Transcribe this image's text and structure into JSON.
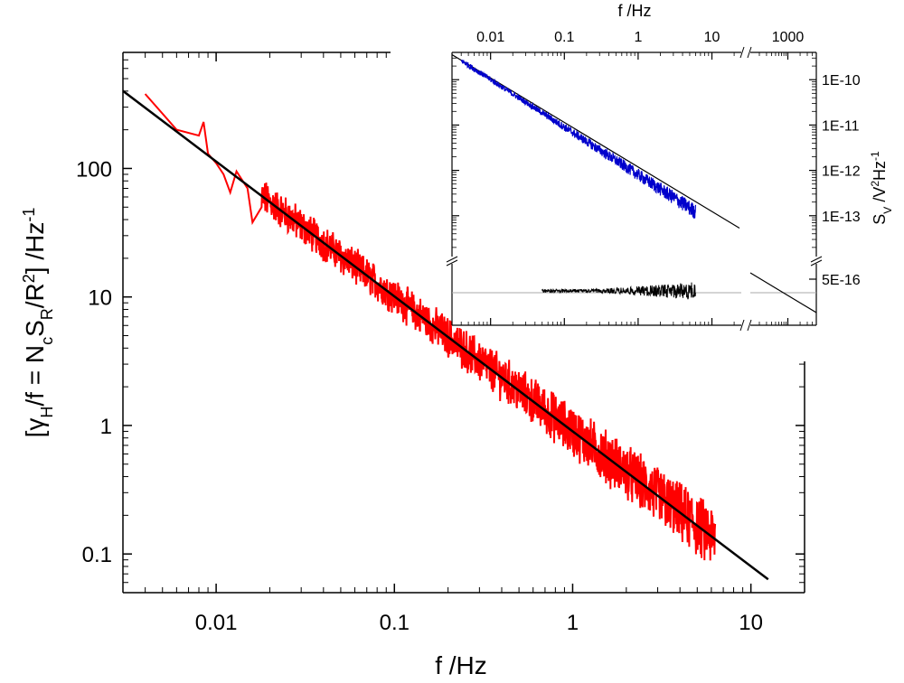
{
  "chart_data": [
    {
      "type": "line",
      "role": "main",
      "scale": "log-log",
      "xlabel": "f /Hz",
      "ylabel": {
        "prefix": "[γ",
        "sub1": "H",
        "mid1": "/f = N",
        "sub2": "c",
        "mid2": "S",
        "sub3": "R",
        "mid3": "/R",
        "sup1": "2",
        "mid4": "] /Hz",
        "sup2": "-1"
      },
      "xlim": [
        0.003,
        20
      ],
      "ylim": [
        0.05,
        800
      ],
      "x_ticks": [
        {
          "value": 0.01,
          "label": "0.01"
        },
        {
          "value": 0.1,
          "label": "0.1"
        },
        {
          "value": 1,
          "label": "1"
        },
        {
          "value": 10,
          "label": "10"
        }
      ],
      "y_ticks": [
        {
          "value": 0.1,
          "label": "0.1"
        },
        {
          "value": 1,
          "label": "1"
        },
        {
          "value": 10,
          "label": "10"
        },
        {
          "value": 100,
          "label": "100"
        }
      ],
      "series": [
        {
          "name": "measured γH/f",
          "color": "#ff0000",
          "style": "noisy",
          "x_range": [
            0.004,
            6.3
          ],
          "trend": {
            "slope": -1.05,
            "ref_x": 1,
            "ref_y": 0.9
          },
          "points": [
            [
              0.004,
              380
            ],
            [
              0.006,
              200
            ],
            [
              0.008,
              180
            ],
            [
              0.0085,
              230
            ],
            [
              0.009,
              130
            ],
            [
              0.01,
              110
            ],
            [
              0.011,
              90
            ],
            [
              0.012,
              65
            ],
            [
              0.013,
              95
            ],
            [
              0.015,
              70
            ],
            [
              0.016,
              38
            ],
            [
              0.018,
              50
            ]
          ]
        },
        {
          "name": "power-law fit",
          "color": "#000000",
          "style": "line",
          "x_range": [
            0.003,
            12.5
          ],
          "trend": {
            "slope": -1.05,
            "ref_x": 1,
            "ref_y": 0.9
          }
        }
      ]
    },
    {
      "type": "line",
      "role": "inset",
      "scale": "log-log",
      "xlabel": "f /Hz",
      "ylabel": {
        "prefix": "S",
        "sub1": "V",
        "mid1": " /V",
        "sup1": "2",
        "mid2": "Hz",
        "sup2": "-1"
      },
      "xlim": [
        0.003,
        5000
      ],
      "x_ticks": [
        {
          "value": 0.01,
          "label": "0.01"
        },
        {
          "value": 0.1,
          "label": "0.1"
        },
        {
          "value": 1,
          "label": "1"
        },
        {
          "value": 10,
          "label": "10"
        },
        {
          "value": 1000,
          "label": "1000"
        }
      ],
      "x_break": [
        25,
        120
      ],
      "y_upper": {
        "ylim": [
          1.2e-14,
          4e-10
        ],
        "ticks": [
          {
            "value": 1e-10,
            "label": "1E-10"
          },
          {
            "value": 1e-11,
            "label": "1E-11"
          },
          {
            "value": 1e-12,
            "label": "1E-12"
          },
          {
            "value": 1e-13,
            "label": "1E-13"
          }
        ]
      },
      "y_lower": {
        "ticks": [
          {
            "value": 5e-16,
            "label": "5E-16"
          }
        ]
      },
      "series": [
        {
          "name": "measured SV",
          "color": "#0000cc",
          "style": "noisy",
          "x_range": [
            0.004,
            6
          ],
          "trend": {
            "slope": -1.05,
            "ref_x": 1,
            "ref_y": 8e-13
          }
        },
        {
          "name": "1/f fit",
          "color": "#000000",
          "style": "line",
          "x_range": [
            0.003,
            5000
          ],
          "trend": {
            "slope": -1.05,
            "ref_x": 1,
            "ref_y": 8e-13
          }
        },
        {
          "name": "background noise",
          "color": "#000000",
          "style": "noisy-flat",
          "x_range": [
            0.05,
            6
          ],
          "level": 5e-16
        },
        {
          "name": "background level",
          "color": "#aaaaaa",
          "style": "flat",
          "x_range": [
            0.003,
            5000
          ],
          "level": 5e-16
        }
      ]
    }
  ]
}
